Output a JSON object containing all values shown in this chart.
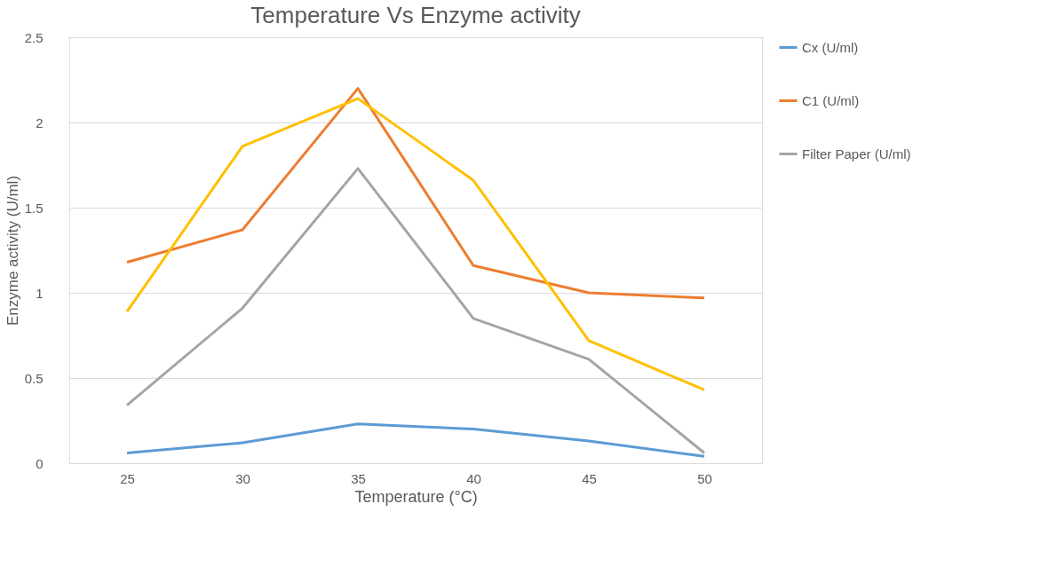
{
  "chart_data": {
    "type": "line",
    "title": "Temperature Vs Enzyme activity",
    "xlabel": "Temperature (°C)",
    "ylabel": "Enzyme activity (U/ml)",
    "categories": [
      "25",
      "30",
      "35",
      "40",
      "45",
      "50"
    ],
    "series": [
      {
        "name": "Cx (U/ml)",
        "color": "#5b9bd5",
        "values": [
          0.06,
          0.12,
          0.23,
          0.2,
          0.13,
          0.04
        ]
      },
      {
        "name": "C1 (U/ml)",
        "color": "#ed7d31",
        "values": [
          1.18,
          1.37,
          2.2,
          1.16,
          1.0,
          0.97
        ]
      },
      {
        "name": "Filter Paper (U/ml)",
        "color": "#a5a5a5",
        "values": [
          0.34,
          0.91,
          1.73,
          0.85,
          0.61,
          0.06
        ]
      },
      {
        "color": "#ffc000",
        "values": [
          0.89,
          1.86,
          2.14,
          1.66,
          0.72,
          0.43
        ]
      }
    ],
    "ylim": [
      0,
      2.5
    ],
    "yticks": [
      0,
      0.5,
      1,
      1.5,
      2,
      2.5
    ],
    "grid": "y",
    "legend": "right",
    "marker": "none",
    "line_style": "solid"
  }
}
